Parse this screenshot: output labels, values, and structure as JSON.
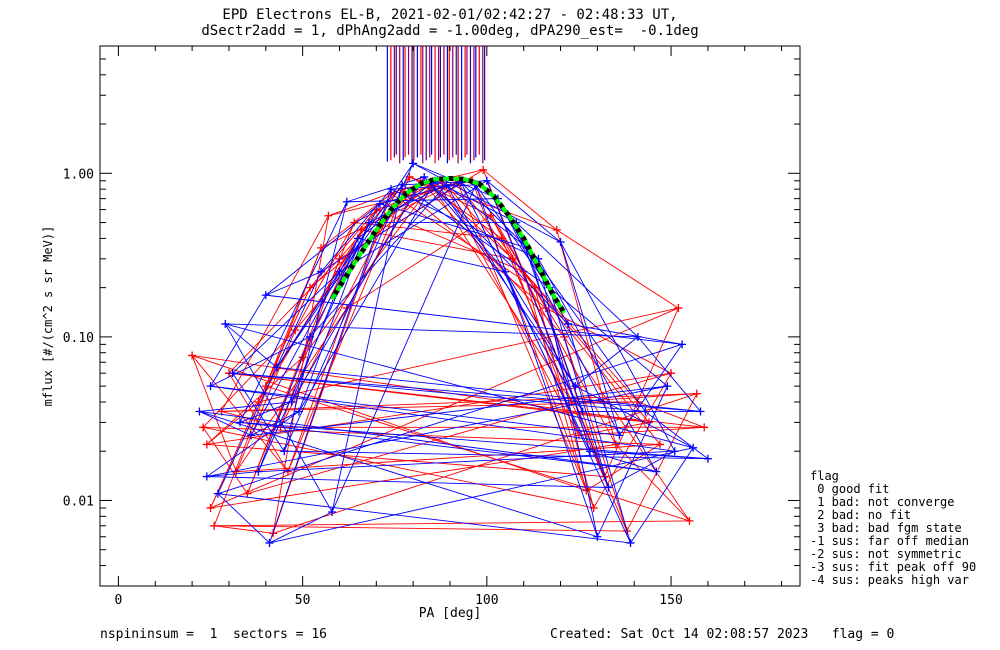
{
  "header": {
    "title_line1": "EPD Electrons EL-B, 2021-02-01/02:42:27 - 02:48:33 UT,",
    "title_line2": "dSectr2add = 1, dPhAng2add = -1.00deg, dPA290_est=  -0.1deg"
  },
  "footer": {
    "left": "nspininsum =  1  sectors = 16",
    "right": "Created: Sat Oct 14 02:08:57 2023   flag = 0"
  },
  "legend": {
    "title": "flag",
    "items": [
      " 0 good fit",
      " 1 bad: not converge",
      " 2 bad: no fit",
      " 3 bad: bad fgm state",
      "-1 sus: far off median",
      "-2 sus: not symmetric",
      "-3 sus: fit peak off 90",
      "-4 sus: peaks high var"
    ]
  },
  "colors": {
    "red_series": "#ff0000",
    "blue_series": "#0000ff",
    "fit_curve": "#00ff00",
    "fit_curve_dark": "#000000",
    "vertical_lines_mix": "#800080"
  },
  "chart_data": {
    "type": "line",
    "xlabel": "PA [deg]",
    "ylabel": "mflux [#/(cm^2 s sr MeV)]",
    "xlim": [
      -5,
      185
    ],
    "ylim": [
      0.003,
      6.0
    ],
    "y_scale": "log",
    "x_ticks": [
      0,
      50,
      100,
      150
    ],
    "y_ticks": [
      {
        "value": 0.01,
        "label": "0.01"
      },
      {
        "value": 0.1,
        "label": "0.10"
      },
      {
        "value": 1.0,
        "label": "1.00"
      }
    ],
    "grid": false,
    "series": [
      {
        "color": "red",
        "points": [
          [
            20,
            0.077
          ],
          [
            23,
            0.028
          ],
          [
            24,
            0.022
          ],
          [
            25,
            0.009
          ],
          [
            26,
            0.007
          ],
          [
            28,
            0.035
          ],
          [
            30,
            0.06
          ],
          [
            32,
            0.015
          ],
          [
            35,
            0.011
          ],
          [
            38,
            0.04
          ],
          [
            40,
            0.05
          ],
          [
            42,
            0.0063
          ],
          [
            44,
            0.028
          ],
          [
            46,
            0.015
          ],
          [
            48,
            0.11
          ],
          [
            50,
            0.075
          ],
          [
            52,
            0.2
          ],
          [
            55,
            0.35
          ],
          [
            57,
            0.55
          ],
          [
            60,
            0.3
          ],
          [
            62,
            0.15
          ],
          [
            64,
            0.5
          ],
          [
            66,
            0.45
          ],
          [
            70,
            0.6
          ],
          [
            74,
            0.75
          ],
          [
            77,
            0.8
          ],
          [
            79,
            0.95
          ],
          [
            82,
            0.9
          ],
          [
            85,
            0.85
          ],
          [
            88,
            0.9
          ],
          [
            92,
            0.88
          ],
          [
            96,
            0.9
          ],
          [
            99,
            1.05
          ],
          [
            101,
            0.55
          ],
          [
            104,
            0.4
          ],
          [
            107,
            0.3
          ],
          [
            110,
            0.25
          ],
          [
            113,
            0.2
          ],
          [
            116,
            0.15
          ],
          [
            119,
            0.45
          ],
          [
            121,
            0.1
          ],
          [
            123,
            0.04
          ],
          [
            125,
            0.025
          ],
          [
            127,
            0.0115
          ],
          [
            129,
            0.009
          ],
          [
            132,
            0.014
          ],
          [
            135,
            0.022
          ],
          [
            138,
            0.0065
          ],
          [
            141,
            0.04
          ],
          [
            144,
            0.03
          ],
          [
            147,
            0.022
          ],
          [
            150,
            0.06
          ],
          [
            152,
            0.15
          ],
          [
            155,
            0.0075
          ],
          [
            157,
            0.045
          ],
          [
            159,
            0.028
          ]
        ]
      },
      {
        "color": "blue",
        "points": [
          [
            22,
            0.035
          ],
          [
            24,
            0.014
          ],
          [
            25,
            0.05
          ],
          [
            27,
            0.011
          ],
          [
            29,
            0.12
          ],
          [
            31,
            0.06
          ],
          [
            33,
            0.03
          ],
          [
            36,
            0.025
          ],
          [
            38,
            0.015
          ],
          [
            40,
            0.18
          ],
          [
            41,
            0.0055
          ],
          [
            43,
            0.065
          ],
          [
            45,
            0.02
          ],
          [
            47,
            0.04
          ],
          [
            49,
            0.035
          ],
          [
            52,
            0.1
          ],
          [
            55,
            0.25
          ],
          [
            58,
            0.0085
          ],
          [
            60,
            0.25
          ],
          [
            62,
            0.67
          ],
          [
            65,
            0.4
          ],
          [
            68,
            0.5
          ],
          [
            71,
            0.65
          ],
          [
            74,
            0.8
          ],
          [
            77,
            0.85
          ],
          [
            80,
            1.15
          ],
          [
            83,
            0.95
          ],
          [
            86,
            0.9
          ],
          [
            89,
            0.85
          ],
          [
            93,
            0.88
          ],
          [
            97,
            0.85
          ],
          [
            100,
            0.9
          ],
          [
            103,
            0.7
          ],
          [
            105,
            0.25
          ],
          [
            108,
            0.5
          ],
          [
            111,
            0.35
          ],
          [
            114,
            0.3
          ],
          [
            117,
            0.2
          ],
          [
            120,
            0.38
          ],
          [
            122,
            0.12
          ],
          [
            124,
            0.05
          ],
          [
            126,
            0.035
          ],
          [
            128,
            0.02
          ],
          [
            130,
            0.006
          ],
          [
            133,
            0.012
          ],
          [
            136,
            0.025
          ],
          [
            139,
            0.0055
          ],
          [
            141,
            0.1
          ],
          [
            143,
            0.035
          ],
          [
            146,
            0.015
          ],
          [
            149,
            0.05
          ],
          [
            151,
            0.02
          ],
          [
            153,
            0.09
          ],
          [
            156,
            0.021
          ],
          [
            158,
            0.035
          ],
          [
            160,
            0.018
          ]
        ]
      }
    ],
    "fit_curve": {
      "color": "green",
      "x": [
        58,
        62,
        66,
        70,
        74,
        78,
        82,
        86,
        90,
        94,
        98,
        102,
        106,
        110,
        114,
        118,
        121
      ],
      "y": [
        0.17,
        0.24,
        0.33,
        0.45,
        0.6,
        0.75,
        0.86,
        0.92,
        0.93,
        0.92,
        0.86,
        0.72,
        0.55,
        0.4,
        0.27,
        0.18,
        0.14
      ]
    }
  }
}
